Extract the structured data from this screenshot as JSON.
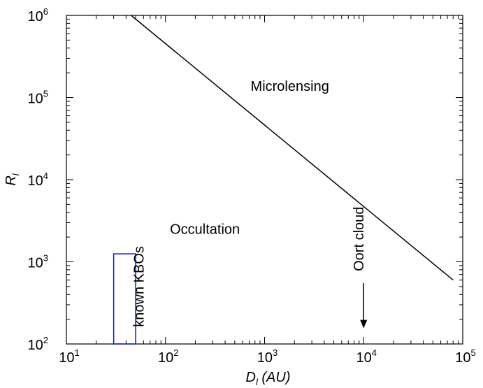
{
  "chart_data": {
    "type": "line",
    "xscale": "log",
    "yscale": "log",
    "xlim": [
      10,
      100000
    ],
    "ylim": [
      100,
      1000000
    ],
    "xlabel": {
      "main": "D",
      "sub": "l",
      "unit": " (AU)"
    },
    "ylabel": {
      "main": "R",
      "sub": "l"
    },
    "x_ticks": [
      {
        "value": 10,
        "base": "10",
        "exp": "1"
      },
      {
        "value": 100,
        "base": "10",
        "exp": "2"
      },
      {
        "value": 1000,
        "base": "10",
        "exp": "3"
      },
      {
        "value": 10000,
        "base": "10",
        "exp": "4"
      },
      {
        "value": 100000,
        "base": "10",
        "exp": "5"
      }
    ],
    "y_ticks": [
      {
        "value": 100,
        "base": "10",
        "exp": "2"
      },
      {
        "value": 1000,
        "base": "10",
        "exp": "3"
      },
      {
        "value": 10000,
        "base": "10",
        "exp": "4"
      },
      {
        "value": 100000,
        "base": "10",
        "exp": "5"
      },
      {
        "value": 1000000,
        "base": "10",
        "exp": "6"
      }
    ],
    "grid": false,
    "series": [
      {
        "x": [
          45,
          80000
        ],
        "y": [
          1000000,
          600
        ],
        "color": "#000000"
      }
    ],
    "annotations": [
      {
        "text": "Microlensing",
        "x": 1800,
        "y": 120000
      },
      {
        "text": "Occultation",
        "x": 250,
        "y": 2200
      },
      {
        "text": "known KBOs",
        "x": 60,
        "y": 500,
        "rotation": -90
      },
      {
        "text": "Oort cloud",
        "x": 10000,
        "y": 1900,
        "rotation": -90
      }
    ],
    "kbo_region": {
      "x": [
        30,
        50
      ],
      "y": [
        100,
        1250
      ],
      "color": "#1a1aaa"
    },
    "oort_arrow": {
      "x": 10000,
      "y_from": 550,
      "y_to": 155
    }
  }
}
